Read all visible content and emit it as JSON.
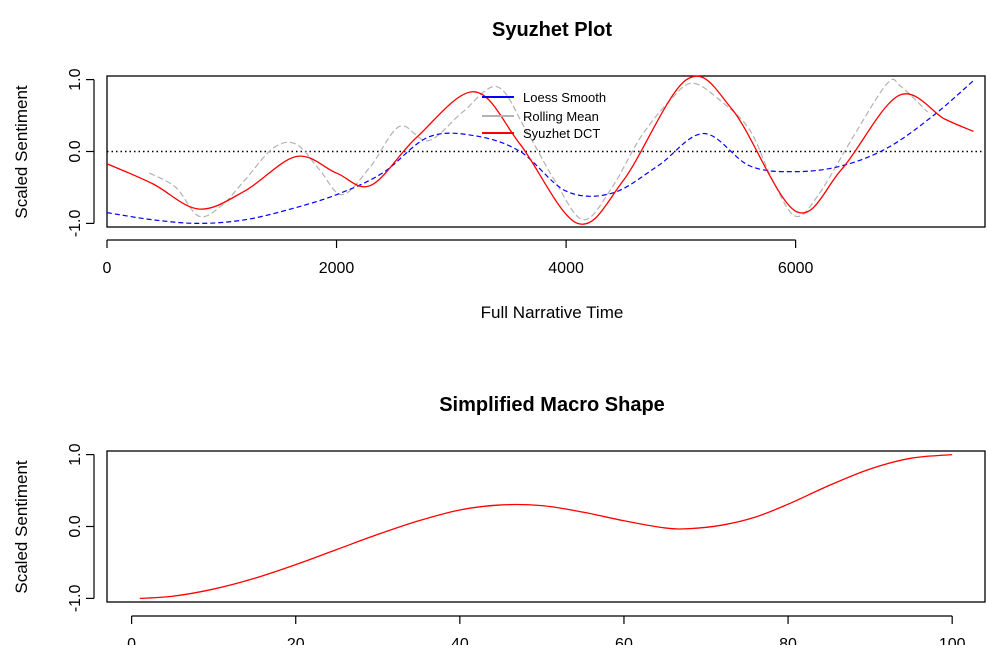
{
  "chart_data": [
    {
      "type": "line",
      "title": "Syuzhet Plot",
      "xlabel": "Full Narrative Time",
      "ylabel": "Scaled Sentiment",
      "xlim": [
        0,
        7650
      ],
      "ylim": [
        -1.05,
        1.05
      ],
      "x_ticks": [
        0,
        2000,
        4000,
        6000
      ],
      "x_tick_labels": [
        "0",
        "2000",
        "4000",
        "6000"
      ],
      "y_ticks": [
        -1.0,
        0.0,
        1.0
      ],
      "y_tick_labels": [
        "-1.0",
        "0.0",
        "1.0"
      ],
      "reference_line": {
        "y": 0,
        "style": "dotted",
        "color": "#000000"
      },
      "legend": {
        "placement": "top-center",
        "entries": [
          {
            "label": "Loess Smooth",
            "color": "#0000ff",
            "style": "solid"
          },
          {
            "label": "Rolling Mean",
            "color": "#b3b3b3",
            "style": "solid"
          },
          {
            "label": "Syuzhet DCT",
            "color": "#ff0000",
            "style": "solid"
          }
        ]
      },
      "series": [
        {
          "name": "Syuzhet DCT",
          "color": "#ff0000",
          "style": "solid",
          "x": [
            0,
            400,
            800,
            1200,
            1650,
            2000,
            2300,
            2700,
            3200,
            3600,
            4100,
            4500,
            5050,
            5450,
            6000,
            6400,
            6900,
            7300,
            7550
          ],
          "y": [
            -0.17,
            -0.45,
            -0.8,
            -0.55,
            -0.07,
            -0.3,
            -0.47,
            0.2,
            0.83,
            0.1,
            -1.0,
            -0.4,
            1.0,
            0.58,
            -0.83,
            -0.25,
            0.78,
            0.45,
            0.28
          ]
        },
        {
          "name": "Loess Smooth",
          "color": "#0000ff",
          "style": "dashed",
          "x": [
            0,
            400,
            800,
            1200,
            1600,
            2000,
            2400,
            2800,
            3200,
            3600,
            4000,
            4400,
            4800,
            5200,
            5600,
            6000,
            6400,
            6800,
            7200,
            7560
          ],
          "y": [
            -0.85,
            -0.95,
            -1.0,
            -0.95,
            -0.8,
            -0.6,
            -0.3,
            0.2,
            0.22,
            0.0,
            -0.55,
            -0.58,
            -0.2,
            0.25,
            -0.2,
            -0.28,
            -0.2,
            0.05,
            0.5,
            1.0
          ]
        },
        {
          "name": "Rolling Mean",
          "color": "#b3b3b3",
          "style": "dashed",
          "x": [
            370,
            600,
            800,
            1000,
            1200,
            1450,
            1650,
            1850,
            2050,
            2300,
            2550,
            2800,
            3100,
            3400,
            3650,
            3900,
            4150,
            4400,
            4650,
            4900,
            5100,
            5350,
            5600,
            5800,
            6000,
            6200,
            6500,
            6800,
            6920,
            7150
          ],
          "y": [
            -0.3,
            -0.5,
            -0.9,
            -0.75,
            -0.4,
            0.05,
            0.1,
            -0.25,
            -0.6,
            -0.2,
            0.35,
            0.15,
            0.55,
            0.9,
            0.3,
            -0.4,
            -0.95,
            -0.5,
            0.2,
            0.7,
            0.95,
            0.7,
            0.3,
            -0.4,
            -0.9,
            -0.6,
            0.2,
            0.95,
            0.9,
            0.55
          ]
        }
      ]
    },
    {
      "type": "line",
      "title": "Simplified Macro Shape",
      "xlabel": "",
      "ylabel": "Scaled Sentiment",
      "xlim": [
        -3,
        104
      ],
      "ylim": [
        -1.05,
        1.05
      ],
      "x_ticks": [
        0,
        20,
        40,
        60,
        80,
        100
      ],
      "x_tick_labels": [
        "0",
        "20",
        "40",
        "60",
        "80",
        "100"
      ],
      "y_ticks": [
        -1.0,
        0.0,
        1.0
      ],
      "y_tick_labels": [
        "-1.0",
        "0.0",
        "1.0"
      ],
      "series": [
        {
          "color": "#ff0000",
          "style": "solid",
          "x": [
            1,
            5,
            10,
            15,
            20,
            25,
            30,
            35,
            40,
            45,
            50,
            55,
            60,
            65,
            68,
            72,
            76,
            80,
            85,
            90,
            95,
            100
          ],
          "y": [
            -1.0,
            -0.97,
            -0.87,
            -0.72,
            -0.53,
            -0.32,
            -0.11,
            0.08,
            0.23,
            0.3,
            0.29,
            0.2,
            0.08,
            -0.02,
            -0.03,
            0.02,
            0.13,
            0.31,
            0.57,
            0.8,
            0.95,
            1.0
          ]
        }
      ]
    }
  ]
}
